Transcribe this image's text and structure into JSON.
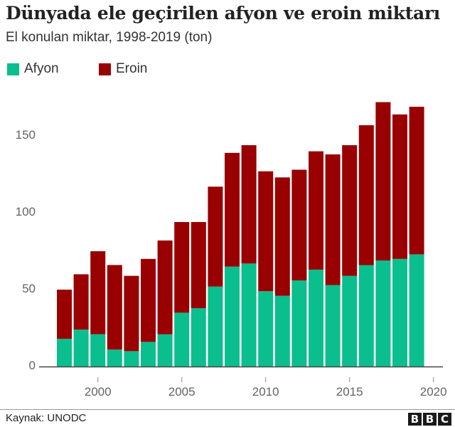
{
  "header": {
    "title": "Dünyada ele geçirilen afyon ve eroin miktarı",
    "subtitle": "El konulan miktar, 1998-2019 (ton)"
  },
  "legend": [
    {
      "label": "Afyon",
      "color": "#0bbe8d"
    },
    {
      "label": "Eroin",
      "color": "#990000"
    }
  ],
  "footer": {
    "source": "Kaynak: UNODC",
    "logo": [
      "B",
      "B",
      "C"
    ]
  },
  "chart_data": {
    "type": "bar",
    "stacked": true,
    "title": "Dünyada ele geçirilen afyon ve eroin miktarı",
    "subtitle": "El konulan miktar, 1998-2019 (ton)",
    "xlabel": "",
    "ylabel": "",
    "ylim": [
      0,
      175
    ],
    "yticks": [
      0,
      50,
      100,
      150
    ],
    "xticks": [
      2000,
      2005,
      2010,
      2015,
      2020
    ],
    "grid": false,
    "legend_position": "top-left",
    "categories": [
      1998,
      1999,
      2000,
      2001,
      2002,
      2003,
      2004,
      2005,
      2006,
      2007,
      2008,
      2009,
      2010,
      2011,
      2012,
      2013,
      2014,
      2015,
      2016,
      2017,
      2018,
      2019
    ],
    "series": [
      {
        "name": "Afyon",
        "color": "#0bbe8d",
        "values": [
          18,
          24,
          21,
          11,
          10,
          16,
          21,
          35,
          38,
          52,
          65,
          67,
          49,
          46,
          56,
          63,
          53,
          59,
          66,
          69,
          70,
          73
        ]
      },
      {
        "name": "Eroin",
        "color": "#990000",
        "values": [
          32,
          36,
          54,
          55,
          49,
          54,
          61,
          59,
          56,
          65,
          74,
          77,
          78,
          77,
          72,
          77,
          85,
          85,
          91,
          103,
          94,
          96
        ]
      }
    ],
    "totals": [
      50,
      60,
      75,
      66,
      59,
      70,
      82,
      94,
      94,
      117,
      139,
      144,
      127,
      123,
      128,
      140,
      138,
      144,
      157,
      172,
      164,
      169
    ],
    "source": "Kaynak: UNODC"
  }
}
